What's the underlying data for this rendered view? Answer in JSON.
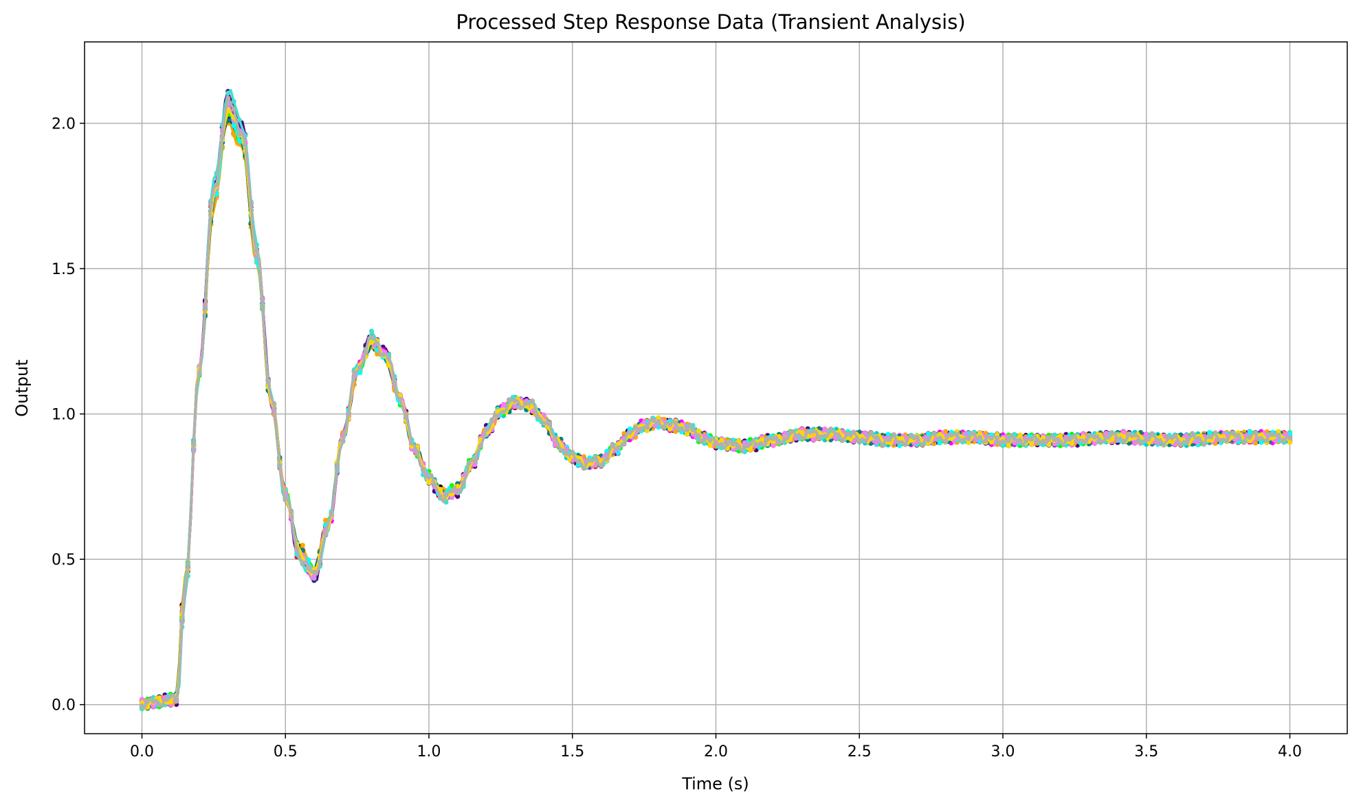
{
  "chart_data": {
    "type": "line",
    "title": "Processed Step Response Data (Transient Analysis)",
    "xlabel": "Time (s)",
    "ylabel": "Output",
    "xlim": [
      -0.2,
      4.2
    ],
    "ylim": [
      -0.1,
      2.28
    ],
    "xticks": [
      "0.0",
      "0.5",
      "1.0",
      "1.5",
      "2.0",
      "2.5",
      "3.0",
      "3.5",
      "4.0"
    ],
    "yticks": [
      "0.0",
      "0.5",
      "1.0",
      "1.5",
      "2.0"
    ],
    "grid": true,
    "legend": "none",
    "marker": "dot",
    "base_response": {
      "x": [
        0.0,
        0.05,
        0.12,
        0.15,
        0.2,
        0.25,
        0.3,
        0.35,
        0.4,
        0.45,
        0.5,
        0.55,
        0.6,
        0.65,
        0.7,
        0.75,
        0.8,
        0.85,
        0.9,
        0.95,
        1.0,
        1.05,
        1.1,
        1.15,
        1.2,
        1.25,
        1.3,
        1.35,
        1.4,
        1.45,
        1.5,
        1.55,
        1.6,
        1.65,
        1.7,
        1.75,
        1.8,
        1.85,
        1.9,
        1.95,
        2.0,
        2.1,
        2.2,
        2.3,
        2.4,
        2.5,
        2.6,
        2.7,
        2.8,
        2.9,
        3.0,
        3.2,
        3.4,
        3.6,
        3.8,
        4.0
      ],
      "y": [
        0.0,
        0.01,
        0.02,
        0.4,
        1.15,
        1.75,
        2.05,
        1.95,
        1.55,
        1.05,
        0.72,
        0.52,
        0.45,
        0.62,
        0.92,
        1.15,
        1.25,
        1.2,
        1.05,
        0.88,
        0.78,
        0.72,
        0.74,
        0.83,
        0.94,
        1.01,
        1.04,
        1.03,
        0.98,
        0.9,
        0.85,
        0.83,
        0.84,
        0.88,
        0.93,
        0.96,
        0.97,
        0.96,
        0.95,
        0.92,
        0.9,
        0.89,
        0.91,
        0.93,
        0.93,
        0.92,
        0.91,
        0.91,
        0.92,
        0.92,
        0.91,
        0.91,
        0.92,
        0.91,
        0.92,
        0.92
      ]
    },
    "series": [
      {
        "color": "#e6194b",
        "gain": 1.03
      },
      {
        "color": "#000000",
        "gain": 0.97
      },
      {
        "color": "#0000ff",
        "gain": 1.01
      },
      {
        "color": "#a52a2a",
        "gain": 1.02
      },
      {
        "color": "#4b0082",
        "gain": 1.04
      },
      {
        "color": "#ff00ff",
        "gain": 1.0
      },
      {
        "color": "#00ced1",
        "gain": 0.99
      },
      {
        "color": "#00ff00",
        "gain": 0.98
      },
      {
        "color": "#ffa500",
        "gain": 0.96
      },
      {
        "color": "#008080",
        "gain": 0.98
      },
      {
        "color": "#40e0d0",
        "gain": 1.05
      },
      {
        "color": "#00ffff",
        "gain": 0.99
      },
      {
        "color": "#ee82ee",
        "gain": 1.01
      },
      {
        "color": "#ffd700",
        "gain": 1.0
      },
      {
        "color": "#b0b0b0",
        "gain": 1.02
      }
    ],
    "colors": {
      "grid": "#b0b0b0",
      "axes": "#000000",
      "background": "#ffffff"
    }
  }
}
